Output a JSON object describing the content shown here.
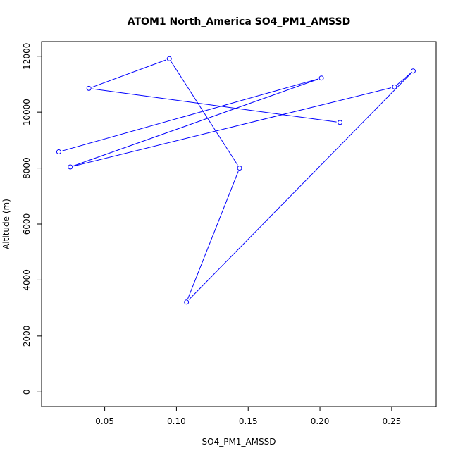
{
  "chart_data": {
    "type": "line",
    "title": "ATOM1 North_America SO4_PM1_AMSSD",
    "xlabel": "SO4_PM1_AMSSD",
    "ylabel": "Altitude (m)",
    "xlim": [
      0.017,
      0.27
    ],
    "ylim": [
      0,
      12000
    ],
    "x_ticks": [
      "0.05",
      "0.10",
      "0.15",
      "0.20",
      "0.25"
    ],
    "y_ticks": [
      "0",
      "2000",
      "4000",
      "6000",
      "8000",
      "10000",
      "12000"
    ],
    "grid": false,
    "legend": "none",
    "color": "#0000ff",
    "series": [
      {
        "points": [
          {
            "x": 0.018,
            "y": 8580
          },
          {
            "x": 0.201,
            "y": 11220
          },
          {
            "x": 0.026,
            "y": 8040
          },
          {
            "x": 0.252,
            "y": 10900
          },
          {
            "x": 0.265,
            "y": 11470
          },
          {
            "x": 0.107,
            "y": 3210
          },
          {
            "x": 0.144,
            "y": 8000
          },
          {
            "x": 0.095,
            "y": 11910
          },
          {
            "x": 0.039,
            "y": 10850
          },
          {
            "x": 0.214,
            "y": 9630
          }
        ]
      }
    ]
  }
}
